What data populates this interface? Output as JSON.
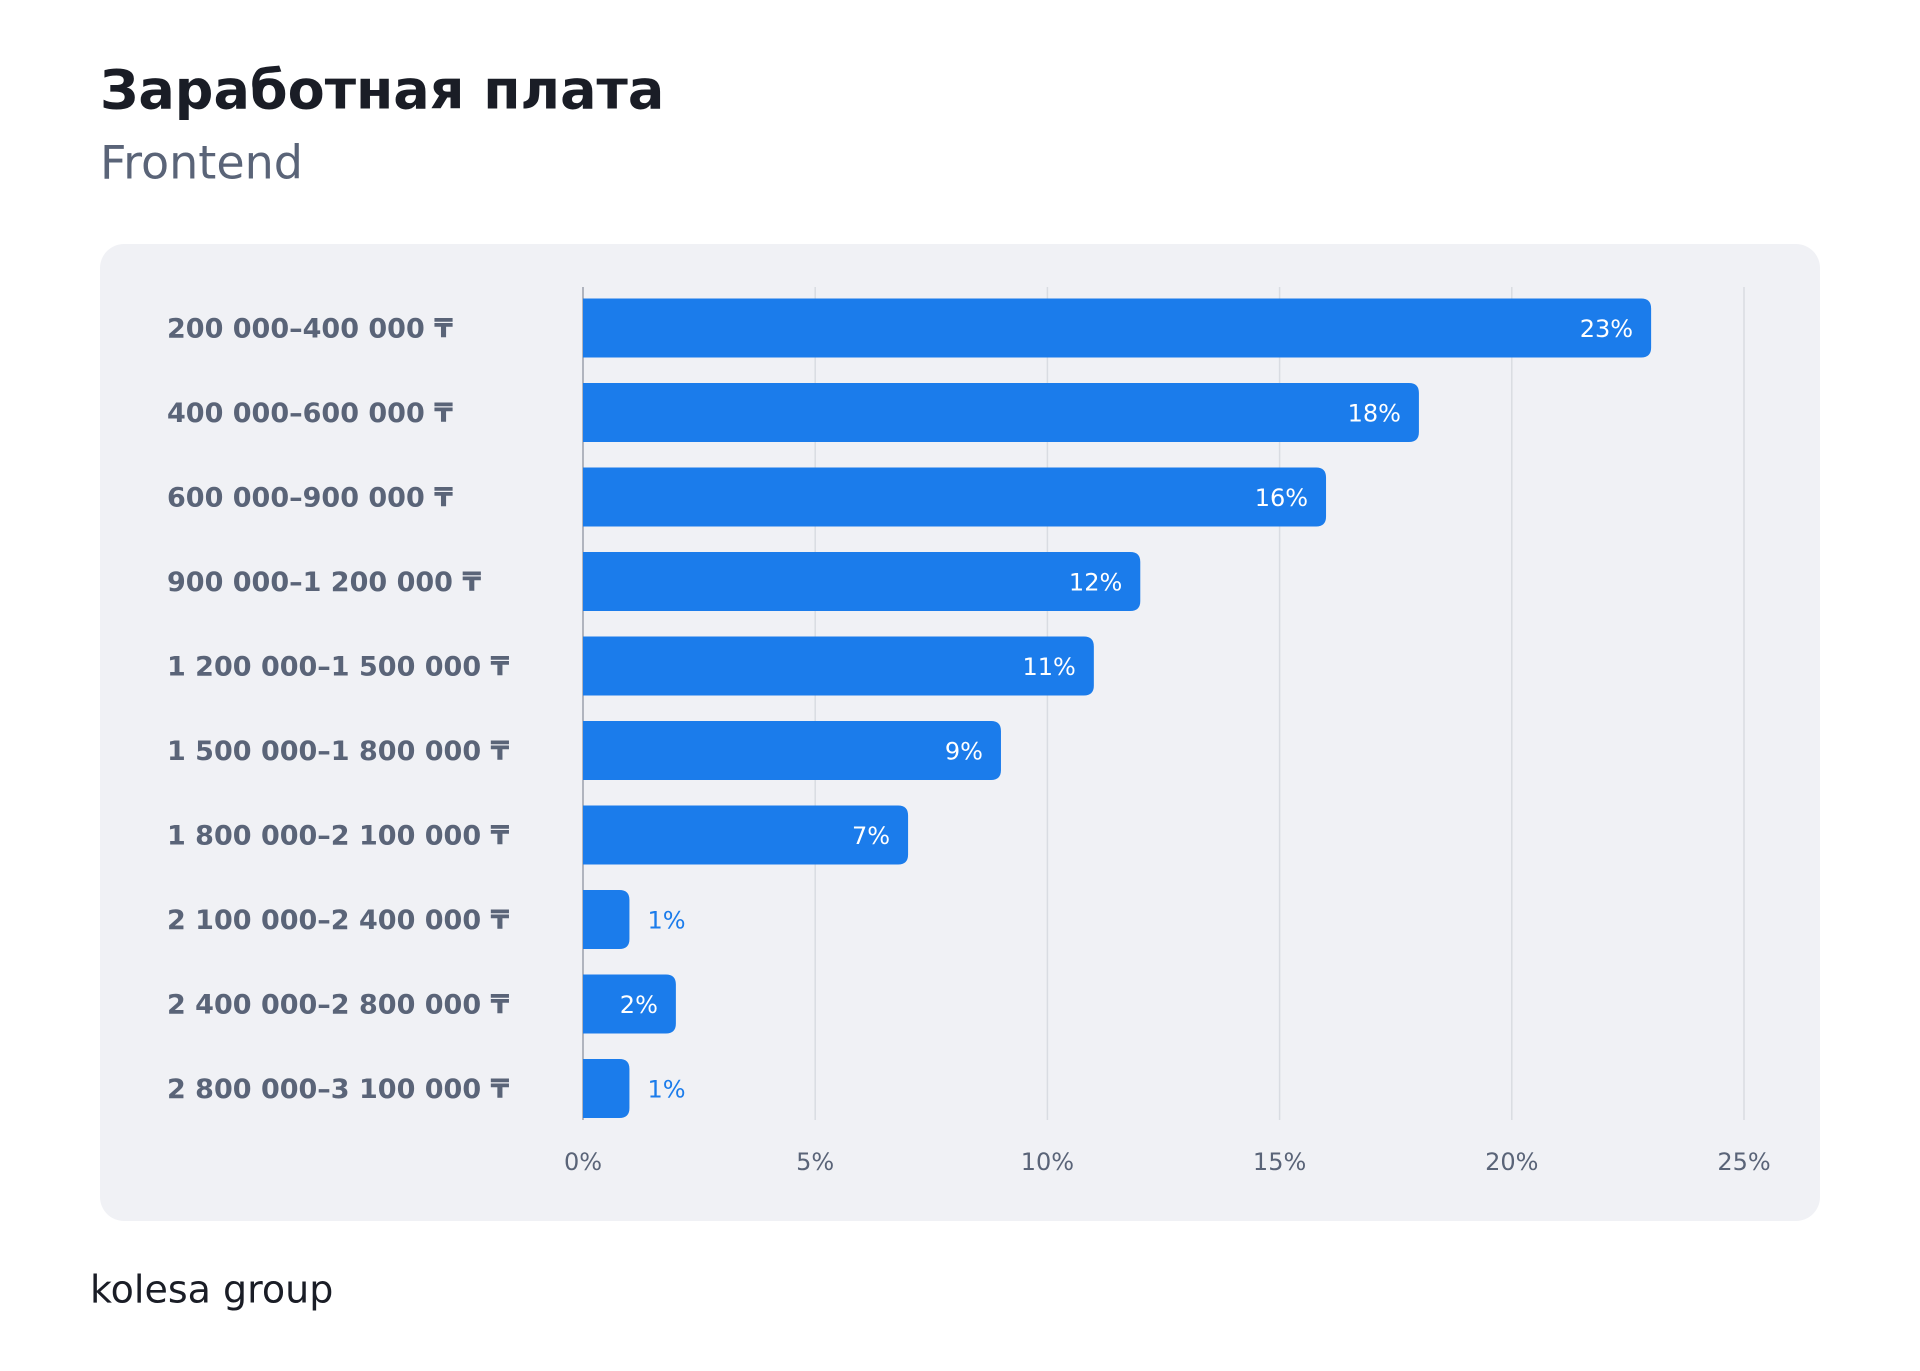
{
  "chart_data": {
    "type": "bar",
    "orientation": "horizontal",
    "title": "Заработная плата",
    "subtitle": "Frontend",
    "categories": [
      "200 000–400 000 ₸",
      "400 000–600 000 ₸",
      "600 000–900 000 ₸",
      "900 000–1 200 000 ₸",
      "1 200 000–1 500 000 ₸",
      "1 500 000–1 800 000 ₸",
      "1 800 000–2 100 000 ₸",
      "2 100 000–2 400 000 ₸",
      "2 400 000–2 800 000 ₸",
      "2 800 000–3 100 000 ₸"
    ],
    "values": [
      23,
      18,
      16,
      12,
      11,
      9,
      7,
      1,
      2,
      1
    ],
    "value_labels": [
      "23%",
      "18%",
      "16%",
      "12%",
      "11%",
      "9%",
      "7%",
      "1%",
      "2%",
      "1%"
    ],
    "color": "#1b7ceb",
    "xlim": [
      0,
      25
    ],
    "xticks": [
      {
        "value": 0,
        "label": "0%"
      },
      {
        "value": 5,
        "label": "5%"
      },
      {
        "value": 10,
        "label": "10%"
      },
      {
        "value": 15,
        "label": "15%"
      },
      {
        "value": 20,
        "label": "20%"
      },
      {
        "value": 25,
        "label": "25%"
      }
    ],
    "grid": true
  },
  "brand": "kolesa group"
}
